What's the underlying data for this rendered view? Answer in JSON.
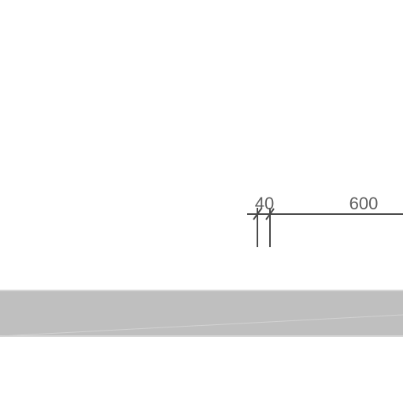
{
  "dimensions": [
    {
      "value": "40",
      "label": "40"
    },
    {
      "value": "600",
      "label": "600"
    }
  ],
  "colors": {
    "background": "#ffffff",
    "line": "#4a4a4a",
    "text": "#5f5f5f",
    "slab_fill": "#bfbfbf",
    "slab_edge": "#d9d9d9"
  }
}
